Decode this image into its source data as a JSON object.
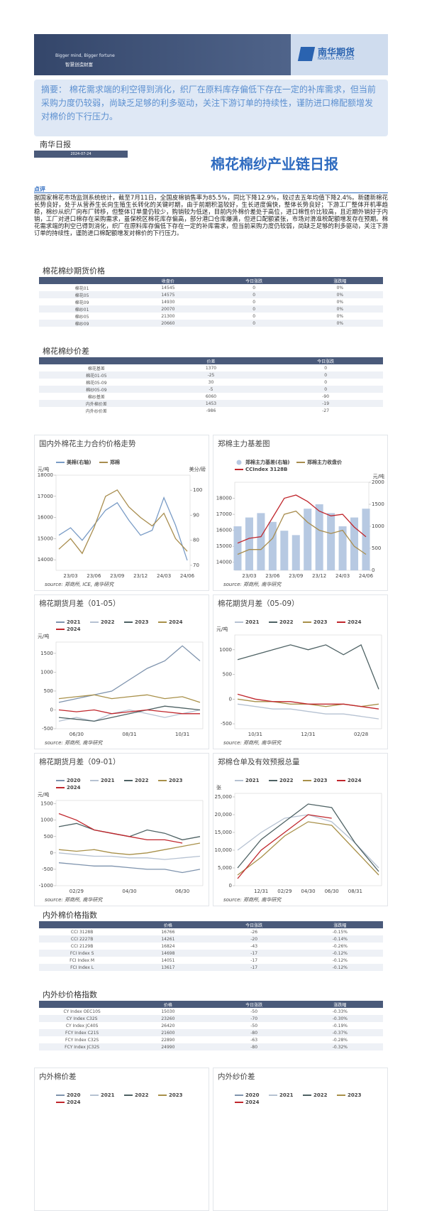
{
  "header": {
    "slogan_en": "Bigger mind, Bigger fortune",
    "slogan_cn": "智慧创造财富",
    "logo_cn": "南华期货",
    "logo_en": "NANHUA FUTURES"
  },
  "summary": "摘要： 棉花需求端的利空得到消化，织厂在原料库存偏低下存在一定的补库需求，但当前采购力度仍较弱，尚缺乏足够的利多驱动，关注下游订单的持续性，谨防进口棉配额增发对棉价的下行压力。",
  "report": {
    "series_name": "南华日报",
    "date": "2024-07-24",
    "title": "棉花棉纱产业链日报"
  },
  "comment": {
    "heading": "点评",
    "text": "据国家棉花市场监测系统统计，截至7月11日，全国皮棉销售率为85.5%，同比下降12.9%，较过去五年均值下降2.4%。新疆新棉花长势良好，处于从营养生长向生殖生长转化的关键时期，由于前期积温较好，生长进度偏快，整体长势良好；下游工厂整体开机率趋稳，棉纱从织厂向布厂转移，但整体订单量仍较少，购销较为低迷，目前内外棉价差处于高位，进口棉性价比较高，且近期外销好于内销，工厂对进口棉存在采购需求，虽保税区棉花库存偏高，部分港口仓库爆满，但进口配额紧张，市场对滑准税配额增发存在预期。棉花需求端的利空已得到消化，织厂在原料库存偏低下存在一定的补库需求，但当前采购力度仍较弱，尚缺乏足够的利多驱动，关注下游订单的持续性，谨防进口棉配额增发对棉价的下行压力。"
  },
  "tables": [
    {
      "title": "棉花棉纱期货价格",
      "columns": [
        "收盘价",
        "今日涨跌",
        "涨跌幅"
      ],
      "rows": [
        [
          "棉花01",
          14545,
          0,
          "0%"
        ],
        [
          "棉花05",
          14575,
          0,
          "0%"
        ],
        [
          "棉花09",
          14930,
          0,
          "0%"
        ],
        [
          "棉纱01",
          20070,
          0,
          "0%"
        ],
        [
          "棉纱05",
          21300,
          0,
          "0%"
        ],
        [
          "棉纱09",
          20660,
          0,
          "0%"
        ]
      ]
    },
    {
      "title": "棉花棉纱价差",
      "columns": [
        "价差",
        "今日涨跌"
      ],
      "rows": [
        [
          "棉花基差",
          1370,
          0
        ],
        [
          "棉花01-05",
          -25,
          0
        ],
        [
          "棉花05-09",
          30,
          0
        ],
        [
          "棉纱05-09",
          -5,
          0
        ],
        [
          "棉纱基差",
          6060,
          -90
        ],
        [
          "内外棉价差",
          1453,
          -19
        ],
        [
          "内外纱价差",
          -986,
          -27
        ]
      ]
    },
    {
      "title": "内外棉价格指数",
      "columns": [
        "价格",
        "今日涨跌",
        "涨跌幅"
      ],
      "rows": [
        [
          "CCI 3128B",
          16766,
          -26,
          "-0.15%"
        ],
        [
          "CCI 2227B",
          14261,
          -20,
          "-0.14%"
        ],
        [
          "CCI 2129B",
          16824,
          -43,
          "-0.26%"
        ],
        [
          "FCI Index S",
          14698,
          -17,
          "-0.12%"
        ],
        [
          "FCI Index M",
          14051,
          -17,
          "-0.12%"
        ],
        [
          "FCI Index L",
          13617,
          -17,
          "-0.12%"
        ]
      ]
    },
    {
      "title": "内外纱价格指数",
      "columns": [
        "价格",
        "今日涨跌",
        "涨跌幅"
      ],
      "rows": [
        [
          "CY Index OEC10S",
          15030,
          -50,
          "-0.33%"
        ],
        [
          "CY Index C32S",
          23260,
          -70,
          "-0.30%"
        ],
        [
          "CY Index JC40S",
          26420,
          -50,
          "-0.19%"
        ],
        [
          "FCY Index C21S",
          21600,
          -80,
          "-0.37%"
        ],
        [
          "FCY Index C32S",
          22890,
          -63,
          "-0.28%"
        ],
        [
          "FCY Index JC32S",
          24990,
          -80,
          "-0.32%"
        ]
      ]
    }
  ],
  "charts": [
    {
      "type": "line",
      "title": "国内外棉花主力合约价格走势",
      "ylabel": "元/吨",
      "y2label": "美分/磅",
      "source": "source: 郑商所, ICE, 南华研究",
      "categories": [
        null,
        "23/03",
        null,
        "23/06",
        null,
        "23/09",
        null,
        "23/12",
        null,
        "24/03",
        null,
        "24/06"
      ],
      "ylim": [
        13500,
        18000
      ],
      "yticks": [
        14000,
        15000,
        16000,
        17000,
        18000
      ],
      "y2lim": [
        68,
        106
      ],
      "y2ticks": [
        70,
        80,
        90,
        100
      ],
      "series": [
        {
          "name": "美棉(右轴)",
          "color": "#7a9cc6",
          "axis": "y2",
          "values": [
            82,
            85,
            80,
            86,
            92,
            95,
            88,
            82,
            84,
            97,
            86,
            72
          ]
        },
        {
          "name": "郑棉",
          "color": "#a88d4e",
          "values": [
            14500,
            15000,
            14300,
            15500,
            17000,
            17300,
            16500,
            16000,
            15600,
            16200,
            15000,
            14400
          ]
        }
      ]
    },
    {
      "type": "line",
      "title": "郑棉主力基差图",
      "y2label": "元/吨",
      "source": "source: 郑商所, 南华研究",
      "categories": [
        null,
        "23/03",
        null,
        "23/06",
        null,
        "23/09",
        null,
        "23/12",
        null,
        "24/03",
        null,
        "24/06"
      ],
      "ylim": [
        13500,
        19000
      ],
      "yticks": [
        14000,
        15000,
        16000,
        17000,
        18000
      ],
      "y2lim": [
        0,
        2000
      ],
      "y2ticks": [
        0,
        500,
        1000,
        1500,
        2000
      ],
      "series": [
        {
          "name": "郑棉主力基差(右轴)",
          "color": "#b7c9e2",
          "axis": "y2",
          "type": "bar",
          "values": [
            1000,
            1200,
            1300,
            1100,
            900,
            800,
            1400,
            1500,
            1300,
            1000,
            1200,
            1400
          ]
        },
        {
          "name": "郑棉主力收盘价",
          "color": "#a88d4e",
          "values": [
            14500,
            14800,
            14800,
            15500,
            17000,
            17200,
            16500,
            16000,
            15800,
            16000,
            15000,
            14500
          ]
        },
        {
          "name": "CCIndex 3128B",
          "color": "#c0262c",
          "values": [
            15200,
            15500,
            15600,
            16800,
            18000,
            18200,
            17800,
            17200,
            16900,
            17000,
            16200,
            15600
          ]
        }
      ]
    },
    {
      "type": "line",
      "title": "棉花期货月差（01-05）",
      "ylabel": "元/吨",
      "source": "source: 郑商所, 南华研究",
      "categories": [
        null,
        "06/30",
        null,
        null,
        "08/31",
        null,
        null,
        "10/31",
        null
      ],
      "ylim": [
        -500,
        1800
      ],
      "yticks": [
        -500,
        0,
        500,
        1000,
        1500
      ],
      "series": [
        {
          "name": "2021",
          "color": "#7e93ad",
          "values": [
            200,
            300,
            400,
            500,
            800,
            1100,
            1300,
            1700,
            1300
          ]
        },
        {
          "name": "2022",
          "color": "#b6c2d2",
          "values": [
            -300,
            -200,
            -300,
            -100,
            0,
            -100,
            -200,
            -100,
            0
          ]
        },
        {
          "name": "2023",
          "color": "#4e6264",
          "values": [
            -200,
            -250,
            -300,
            -200,
            -100,
            0,
            100,
            50,
            0
          ]
        },
        {
          "name": "2024",
          "color": "#a89049",
          "values": [
            300,
            350,
            400,
            300,
            350,
            400,
            300,
            350,
            200
          ]
        },
        {
          "name": "2024",
          "color": "#c0262c",
          "values": [
            0,
            -50,
            0,
            -100,
            -50,
            0,
            -50,
            -100,
            -100
          ]
        }
      ]
    },
    {
      "type": "line",
      "title": "棉花期货月差（05-09）",
      "ylabel": "元/吨",
      "source": "source: 郑商所, 南华研究",
      "categories": [
        null,
        "10/31",
        null,
        null,
        "12/31",
        null,
        null,
        "02/28",
        null
      ],
      "ylim": [
        -600,
        1300
      ],
      "yticks": [
        -500,
        0,
        500,
        1000
      ],
      "series": [
        {
          "name": "2021",
          "color": "#b6c2d2",
          "values": [
            -100,
            -150,
            -200,
            -200,
            -250,
            -300,
            -300,
            -350,
            -400
          ]
        },
        {
          "name": "2022",
          "color": "#4e6264",
          "values": [
            800,
            900,
            1000,
            1100,
            1000,
            1100,
            900,
            1100,
            200
          ]
        },
        {
          "name": "2023",
          "color": "#a89049",
          "values": [
            0,
            -50,
            -50,
            -100,
            -100,
            -150,
            -100,
            -150,
            -100
          ]
        },
        {
          "name": "2024",
          "color": "#c0262c",
          "values": [
            100,
            0,
            -50,
            -50,
            -100,
            -100,
            -100,
            -150,
            -200
          ]
        }
      ]
    },
    {
      "type": "line",
      "title": "棉花期货月差（09-01）",
      "ylabel": "元/吨",
      "source": "source: 郑商所, 南华研究",
      "categories": [
        null,
        "02/29",
        null,
        null,
        "04/30",
        null,
        null,
        "06/30",
        null
      ],
      "ylim": [
        -1000,
        1600
      ],
      "yticks": [
        -1000,
        -500,
        0,
        500,
        1000,
        1500
      ],
      "series": [
        {
          "name": "2020",
          "color": "#7e93ad",
          "values": [
            -300,
            -350,
            -400,
            -400,
            -450,
            -500,
            -500,
            -600,
            -500
          ]
        },
        {
          "name": "2021",
          "color": "#b6c2d2",
          "values": [
            0,
            -50,
            -100,
            -100,
            -150,
            -150,
            -200,
            -150,
            -100
          ]
        },
        {
          "name": "2022",
          "color": "#4e6264",
          "values": [
            800,
            900,
            700,
            600,
            500,
            700,
            600,
            400,
            500
          ]
        },
        {
          "name": "2023",
          "color": "#a89049",
          "values": [
            100,
            50,
            100,
            0,
            -50,
            0,
            100,
            200,
            300
          ]
        },
        {
          "name": "2024",
          "color": "#c0262c",
          "values": [
            1200,
            1000,
            700,
            600,
            500,
            400,
            400,
            300,
            null
          ]
        }
      ]
    },
    {
      "type": "line",
      "title": "郑棉仓单及有效预报总量",
      "ylabel": "张",
      "source": "source: 郑商所, 南华研究",
      "categories": [
        null,
        "12/31",
        "02/29",
        "04/30",
        "06/30",
        "08/31",
        null
      ],
      "ylim": [
        0,
        26000
      ],
      "yticks": [
        0,
        {
          "value": 5000,
          "label": "5,000"
        },
        {
          "value": 10000,
          "label": "10,000"
        },
        {
          "value": 15000,
          "label": "15,000"
        },
        {
          "value": 20000,
          "label": "20,000"
        },
        {
          "value": 25000,
          "label": "25,000"
        }
      ],
      "series": [
        {
          "name": "2021",
          "color": "#b6c2d2",
          "values": [
            10000,
            15000,
            19000,
            20000,
            18000,
            12000,
            5000
          ]
        },
        {
          "name": "2022",
          "color": "#4e6264",
          "values": [
            5000,
            13000,
            18000,
            23000,
            22000,
            12000,
            4000
          ]
        },
        {
          "name": "2023",
          "color": "#a89049",
          "values": [
            3000,
            8000,
            14000,
            18000,
            17000,
            10000,
            3000
          ]
        },
        {
          "name": "2024",
          "color": "#c0262c",
          "values": [
            2000,
            10000,
            15000,
            20000,
            19000,
            null,
            null
          ]
        }
      ]
    },
    {
      "type": "line",
      "title": "内外棉价差",
      "series": [
        {
          "name": "2020",
          "color": "#7e93ad"
        },
        {
          "name": "2021",
          "color": "#b6c2d2"
        },
        {
          "name": "2022",
          "color": "#4e6264"
        },
        {
          "name": "2023",
          "color": "#a89049"
        },
        {
          "name": "2024",
          "color": "#c0262c"
        }
      ]
    },
    {
      "type": "line",
      "title": "内外纱价差",
      "series": [
        {
          "name": "2020",
          "color": "#7e93ad"
        },
        {
          "name": "2021",
          "color": "#b6c2d2"
        },
        {
          "name": "2022",
          "color": "#4e6264"
        },
        {
          "name": "2023",
          "color": "#a89049"
        },
        {
          "name": "2024",
          "color": "#c0262c"
        }
      ]
    }
  ]
}
